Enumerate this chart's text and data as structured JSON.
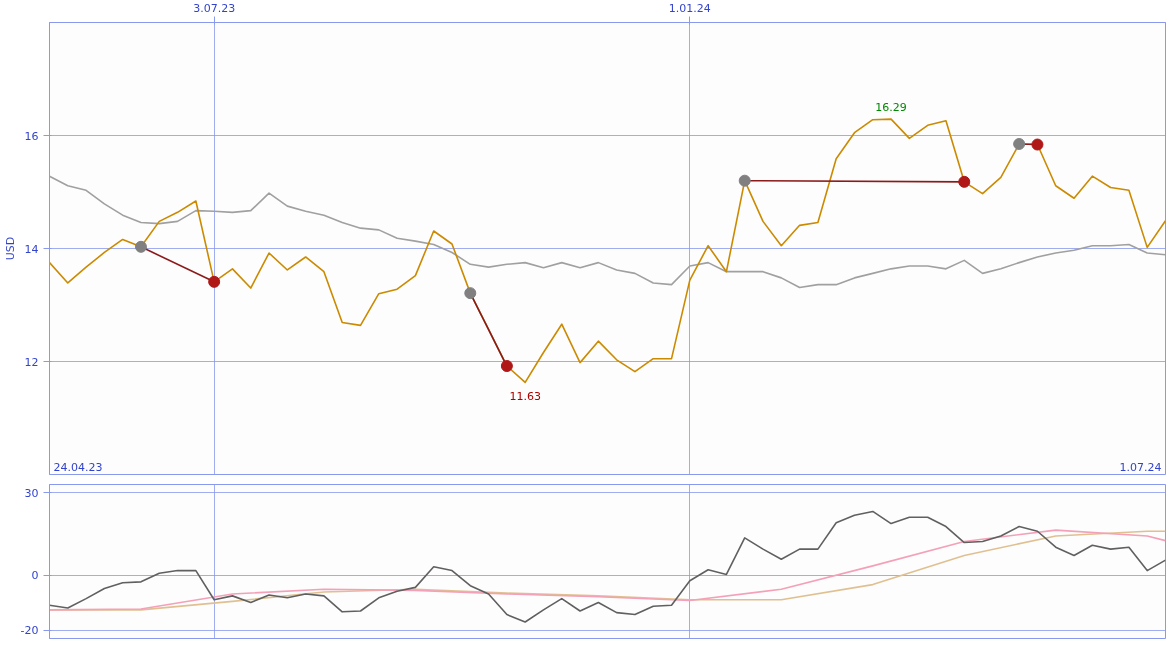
{
  "chart_data": [
    {
      "type": "line",
      "ylabel": "USD",
      "x": [
        "2023-05-01",
        "2023-05-08",
        "2023-05-15",
        "2023-05-22",
        "2023-05-29",
        "2023-06-05",
        "2023-06-12",
        "2023-06-19",
        "2023-06-26",
        "2023-07-03",
        "2023-07-10",
        "2023-07-17",
        "2023-07-24",
        "2023-07-31",
        "2023-08-07",
        "2023-08-14",
        "2023-08-21",
        "2023-08-28",
        "2023-09-04",
        "2023-09-11",
        "2023-09-18",
        "2023-09-25",
        "2023-10-02",
        "2023-10-09",
        "2023-10-16",
        "2023-10-23",
        "2023-10-30",
        "2023-11-06",
        "2023-11-13",
        "2023-11-20",
        "2023-11-27",
        "2023-12-04",
        "2023-12-11",
        "2023-12-18",
        "2023-12-25",
        "2024-01-01",
        "2024-01-08",
        "2024-01-15",
        "2024-01-22",
        "2024-01-29",
        "2024-02-05",
        "2024-02-12",
        "2024-02-19",
        "2024-02-26",
        "2024-03-04",
        "2024-03-11",
        "2024-03-18",
        "2024-03-25",
        "2024-04-01",
        "2024-04-08",
        "2024-04-15",
        "2024-04-22",
        "2024-04-29",
        "2024-05-06",
        "2024-05-13",
        "2024-05-20",
        "2024-05-27",
        "2024-06-03",
        "2024-06-10",
        "2024-06-17",
        "2024-06-24",
        "2024-07-01"
      ],
      "series": [
        {
          "color": "#a0a0a0",
          "values": [
            15.28,
            15.11,
            15.03,
            14.79,
            14.59,
            14.46,
            14.44,
            14.48,
            14.67,
            14.66,
            14.64,
            14.67,
            14.98,
            14.75,
            14.66,
            14.59,
            14.46,
            14.36,
            14.33,
            14.18,
            14.13,
            14.07,
            13.93,
            13.72,
            13.67,
            13.72,
            13.75,
            13.66,
            13.75,
            13.66,
            13.75,
            13.62,
            13.56,
            13.39,
            13.36,
            13.69,
            13.75,
            13.59,
            13.59,
            13.59,
            13.48,
            13.31,
            13.36,
            13.36,
            13.48,
            13.56,
            13.64,
            13.69,
            13.69,
            13.64,
            13.79,
            13.56,
            13.64,
            13.75,
            13.85,
            13.92,
            13.97,
            14.05,
            14.05,
            14.07,
            13.92,
            13.89
          ]
        },
        {
          "color": "#cc8a00",
          "values": [
            13.75,
            13.39,
            13.67,
            13.93,
            14.16,
            14.03,
            14.48,
            14.64,
            14.84,
            13.41,
            13.64,
            13.3,
            13.92,
            13.62,
            13.85,
            13.59,
            12.69,
            12.64,
            13.2,
            13.28,
            13.52,
            14.31,
            14.08,
            13.21,
            12.57,
            11.92,
            11.63,
            12.16,
            12.66,
            11.98,
            12.36,
            12.03,
            11.82,
            12.05,
            12.05,
            13.44,
            14.05,
            13.59,
            15.2,
            14.48,
            14.05,
            14.41,
            14.46,
            15.59,
            16.05,
            16.28,
            16.29,
            15.95,
            16.18,
            16.26,
            15.18,
            14.97,
            15.26,
            15.85,
            15.84,
            15.11,
            14.89,
            15.28,
            15.08,
            15.03,
            14.02,
            14.49
          ]
        },
        {
          "color": "#8b1a1a",
          "x": [
            "2023-06-05",
            "2023-07-03"
          ],
          "values": [
            14.03,
            13.41
          ]
        },
        {
          "color": "#8b1a1a",
          "x": [
            "2023-10-09",
            "2023-10-23"
          ],
          "values": [
            13.21,
            11.92
          ]
        },
        {
          "color": "#8b1a1a",
          "x": [
            "2024-01-22",
            "2024-04-15"
          ],
          "values": [
            15.2,
            15.18
          ]
        },
        {
          "color": "#8b1a1a",
          "x": [
            "2024-05-06",
            "2024-05-13"
          ],
          "values": [
            15.85,
            15.84
          ]
        },
        {
          "type": "scatter",
          "marker": "circle",
          "color": "#808080",
          "x": [
            "2023-06-05",
            "2023-10-09",
            "2024-01-22",
            "2024-05-06"
          ],
          "values": [
            14.03,
            13.21,
            15.2,
            15.85
          ]
        },
        {
          "type": "scatter",
          "marker": "circle",
          "color": "#b01818",
          "x": [
            "2023-07-03",
            "2023-10-23",
            "2024-04-15",
            "2024-05-13"
          ],
          "values": [
            13.41,
            11.92,
            15.18,
            15.84
          ]
        }
      ],
      "xlim": [
        "2023-05-01",
        "2024-07-01"
      ],
      "xticks": [
        {
          "value": "2023-07-03",
          "label": "3.07.23"
        },
        {
          "value": "2024-01-01",
          "label": "1.01.24"
        }
      ],
      "ylim": [
        10,
        18
      ],
      "yticks": [
        12,
        14,
        16
      ],
      "grid": true,
      "annotations": [
        "24.04.23",
        "1.07.24",
        {
          "text": "16.29",
          "x": "2024-03-18",
          "y": 16.29
        },
        {
          "text": "11.63",
          "x": "2023-10-30",
          "y": 11.63
        }
      ]
    },
    {
      "type": "line",
      "x": [
        "2023-05-01",
        "2023-05-08",
        "2023-05-15",
        "2023-05-22",
        "2023-05-29",
        "2023-06-05",
        "2023-06-12",
        "2023-06-19",
        "2023-06-26",
        "2023-07-03",
        "2023-07-10",
        "2023-07-17",
        "2023-07-24",
        "2023-07-31",
        "2023-08-07",
        "2023-08-14",
        "2023-08-21",
        "2023-08-28",
        "2023-09-04",
        "2023-09-11",
        "2023-09-18",
        "2023-09-25",
        "2023-10-02",
        "2023-10-09",
        "2023-10-16",
        "2023-10-23",
        "2023-10-30",
        "2023-11-06",
        "2023-11-13",
        "2023-11-20",
        "2023-11-27",
        "2023-12-04",
        "2023-12-11",
        "2023-12-18",
        "2023-12-25",
        "2024-01-01",
        "2024-01-08",
        "2024-01-15",
        "2024-01-22",
        "2024-01-29",
        "2024-02-05",
        "2024-02-12",
        "2024-02-19",
        "2024-02-26",
        "2024-03-04",
        "2024-03-11",
        "2024-03-18",
        "2024-03-25",
        "2024-04-01",
        "2024-04-08",
        "2024-04-15",
        "2024-04-22",
        "2024-04-29",
        "2024-05-06",
        "2024-05-13",
        "2024-05-20",
        "2024-05-27",
        "2024-06-03",
        "2024-06-10",
        "2024-06-17",
        "2024-06-24",
        "2024-07-01"
      ],
      "series": [
        {
          "color": "#e0c090",
          "x": [
            "2023-05-01",
            "2023-06-05",
            "2023-07-10",
            "2023-08-14",
            "2023-09-18",
            "2023-10-23",
            "2023-11-27",
            "2024-01-01",
            "2024-02-05",
            "2024-03-11",
            "2024-04-15",
            "2024-05-20",
            "2024-06-24",
            "2024-07-01"
          ],
          "values": [
            -12.6,
            -12.6,
            -9.5,
            -6.1,
            -5.1,
            -6.5,
            -7.5,
            -8.9,
            -8.9,
            -3.4,
            7.2,
            14.3,
            16.0,
            16.0
          ]
        },
        {
          "color": "#f4a0b8",
          "x": [
            "2023-05-01",
            "2023-06-05",
            "2023-07-10",
            "2023-08-14",
            "2023-09-18",
            "2023-10-23",
            "2023-11-27",
            "2024-01-01",
            "2024-02-05",
            "2024-03-11",
            "2024-04-15",
            "2024-05-20",
            "2024-06-24",
            "2024-07-01"
          ],
          "values": [
            -12.6,
            -12.3,
            -6.8,
            -5.1,
            -5.5,
            -6.8,
            -7.8,
            -9.2,
            -5.1,
            3.4,
            12.3,
            16.4,
            14.3,
            12.6
          ]
        },
        {
          "color": "#606060",
          "values": [
            -10.9,
            -11.9,
            -8.5,
            -4.8,
            -2.7,
            -2.4,
            0.7,
            1.7,
            1.7,
            -8.9,
            -7.5,
            -9.9,
            -7.2,
            -8.2,
            -6.8,
            -7.5,
            -13.3,
            -13.0,
            -8.2,
            -5.8,
            -4.4,
            3.1,
            1.7,
            -3.8,
            -6.8,
            -14.3,
            -17.0,
            -12.6,
            -8.5,
            -13.0,
            -9.9,
            -13.6,
            -14.3,
            -11.3,
            -10.9,
            -2.0,
            2.0,
            0.3,
            13.6,
            9.5,
            5.8,
            9.5,
            9.5,
            19.1,
            21.8,
            23.2,
            18.8,
            21.1,
            21.1,
            17.7,
            11.9,
            12.3,
            14.3,
            17.7,
            16.0,
            10.2,
            7.2,
            10.9,
            9.5,
            10.2,
            1.7,
            5.5
          ]
        }
      ],
      "xlim": [
        "2023-05-01",
        "2024-07-01"
      ],
      "xticks": [
        {
          "value": "2023-07-03",
          "label": null
        },
        {
          "value": "2024-01-01",
          "label": null
        }
      ],
      "ylim": [
        -23,
        33
      ],
      "yticks": [
        -20,
        0,
        30
      ],
      "grid": true,
      "tick_labels": "y"
    }
  ]
}
